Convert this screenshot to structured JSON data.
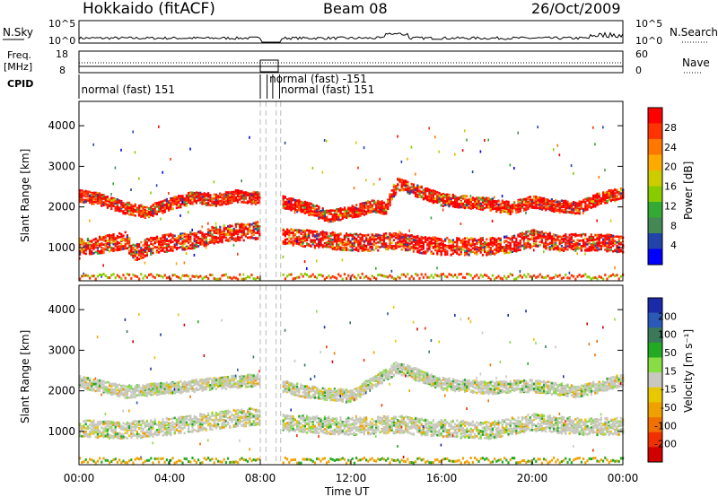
{
  "header": {
    "station": "Hokkaido (fitACF)",
    "beam": "Beam 08",
    "date": "26/Oct/2009"
  },
  "top_strip": {
    "nsky_label": "N.Sky",
    "nsky_ticks": [
      "10^5",
      "10^0"
    ],
    "nsearch_label": "N.Search",
    "nsearch_ticks": [
      "10^5",
      "10^0"
    ],
    "freq_label_1": "Freq.",
    "freq_label_2": "[MHz]",
    "freq_ticks": [
      "18",
      "8"
    ],
    "nave_label": "Nave",
    "nave_ticks": [
      "60",
      "0"
    ],
    "cpid_label": "CPID",
    "cpid_entries": [
      {
        "text": "normal (fast) 151",
        "hour": 0.1,
        "row": 0
      },
      {
        "text": "normal (fast) -151",
        "hour": 8.4,
        "row": 1
      },
      {
        "text": "normal (fast) 151",
        "hour": 8.9,
        "row": 2
      }
    ],
    "cpid_boundaries_hours": [
      8.0,
      8.3,
      8.55,
      8.85
    ]
  },
  "axes": {
    "x_label": "Time UT",
    "x_ticks": [
      "00:00",
      "04:00",
      "08:00",
      "12:00",
      "16:00",
      "20:00",
      "00:00"
    ],
    "y_label": "Slant Range [km]",
    "y_ticks": [
      "1000",
      "2000",
      "3000",
      "4000"
    ]
  },
  "power_colorbar": {
    "label": "Power [dB]",
    "ticks": [
      "28",
      "24",
      "20",
      "16",
      "12",
      "8",
      "4"
    ],
    "colors": [
      "#ff0000",
      "#ff3300",
      "#ff7700",
      "#ffaa00",
      "#cccc00",
      "#88cc00",
      "#33aa33",
      "#448855",
      "#2244aa",
      "#0000ff"
    ]
  },
  "velocity_colorbar": {
    "label": "Velocity [m s⁻¹]",
    "ticks": [
      "200",
      "100",
      "50",
      "15",
      "-15",
      "-50",
      "-100",
      "-200"
    ],
    "colors": [
      "#1a2aa8",
      "#2a5ab8",
      "#3a7a5a",
      "#22aa22",
      "#88dd44",
      "#c8c8c0",
      "#e8c800",
      "#f0a000",
      "#f07000",
      "#f03000",
      "#d00000"
    ]
  },
  "chart_data": [
    {
      "type": "heatmap",
      "title": "Power",
      "xlabel": "Time UT",
      "ylabel": "Slant Range [km]",
      "xlim_hours": [
        0,
        24
      ],
      "ylim_km": [
        180,
        4600
      ],
      "colorbar": {
        "label": "Power [dB]",
        "range": [
          0,
          30
        ]
      },
      "gap_hours": [
        8.0,
        8.9
      ],
      "features": [
        {
          "name": "main echo band",
          "x_hours": [
            0,
            1,
            2,
            2.5,
            3,
            4,
            5,
            6,
            7,
            7.9,
            8.9,
            10,
            11,
            12,
            13,
            14,
            15,
            16,
            17,
            18,
            19,
            20,
            21,
            22,
            23,
            24
          ],
          "y_km": [
            1050,
            1100,
            1200,
            900,
            1050,
            1150,
            1200,
            1350,
            1400,
            1450,
            1300,
            1250,
            1200,
            1150,
            1150,
            1200,
            1100,
            1050,
            1050,
            1050,
            1100,
            1250,
            1150,
            1150,
            1150,
            1100
          ],
          "power_db": 28
        },
        {
          "name": "upper echo band",
          "x_hours": [
            0,
            1,
            2,
            3,
            4,
            5,
            6,
            7,
            8.9,
            10,
            11,
            12,
            13,
            13.5,
            14,
            15,
            16,
            17,
            18,
            19,
            20,
            21,
            22,
            23,
            24
          ],
          "y_km": [
            2300,
            2200,
            2000,
            1900,
            2100,
            2250,
            2200,
            2300,
            2150,
            2000,
            1800,
            1900,
            2050,
            2000,
            2600,
            2400,
            2200,
            2150,
            2100,
            2000,
            2150,
            2050,
            2000,
            2250,
            2350
          ],
          "power_db": 24
        }
      ]
    },
    {
      "type": "heatmap",
      "title": "Velocity",
      "xlabel": "Time UT",
      "ylabel": "Slant Range [km]",
      "xlim_hours": [
        0,
        24
      ],
      "ylim_km": [
        180,
        4600
      ],
      "colorbar": {
        "label": "Velocity [m s⁻¹]",
        "range": [
          -200,
          200
        ]
      },
      "gap_hours": [
        8.0,
        8.9
      ],
      "features": [
        {
          "name": "ground scatter band",
          "x_hours": [
            0,
            2,
            4,
            6,
            7.9,
            8.9,
            10,
            12,
            14,
            16,
            18,
            20,
            22,
            24
          ],
          "y_km": [
            1100,
            1050,
            1150,
            1300,
            1400,
            1250,
            1200,
            1150,
            1200,
            1100,
            1050,
            1250,
            1150,
            1150
          ],
          "velocity_ms": 0
        },
        {
          "name": "upper band",
          "x_hours": [
            0,
            2,
            4,
            6,
            7.9,
            8.9,
            10,
            12,
            14,
            16,
            18,
            20,
            22,
            24
          ],
          "y_km": [
            2250,
            2000,
            2100,
            2200,
            2300,
            2150,
            2000,
            1900,
            2600,
            2200,
            2100,
            2150,
            2000,
            2300
          ],
          "velocity_ms": 0
        }
      ]
    }
  ]
}
